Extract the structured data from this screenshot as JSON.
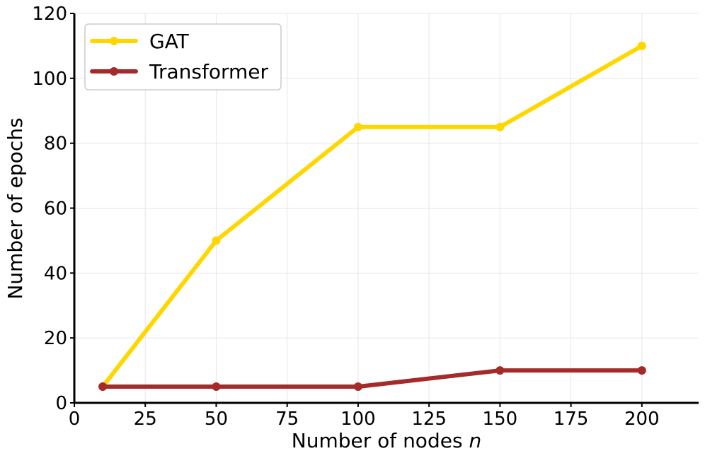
{
  "chart_data": {
    "type": "line",
    "title": "",
    "xlabel": "Number of nodes",
    "xlabel_var": "n",
    "ylabel": "Number of epochs",
    "xlim": [
      0,
      220
    ],
    "ylim": [
      0,
      120
    ],
    "xticks": [
      0,
      25,
      50,
      75,
      100,
      125,
      150,
      175,
      200
    ],
    "yticks": [
      0,
      20,
      40,
      60,
      80,
      100,
      120
    ],
    "grid": true,
    "legend_position": "top-left",
    "series": [
      {
        "name": "GAT",
        "color": "#FFD700",
        "x": [
          10,
          50,
          100,
          150,
          200
        ],
        "y": [
          5,
          50,
          85,
          85,
          110
        ]
      },
      {
        "name": "Transformer",
        "color": "#A52A2A",
        "x": [
          10,
          50,
          100,
          150,
          200
        ],
        "y": [
          5,
          5,
          5,
          10,
          10
        ]
      }
    ]
  }
}
